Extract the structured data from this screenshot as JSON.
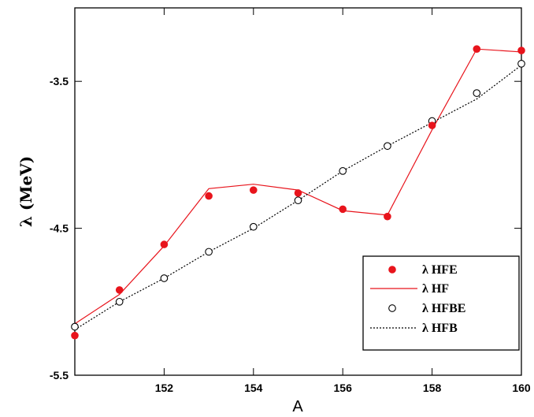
{
  "chart_data": {
    "type": "line",
    "xlabel": "A",
    "ylabel": "λ (MeV)",
    "xlim": [
      150,
      160
    ],
    "ylim": [
      -5.5,
      -3.0
    ],
    "x_ticks": [
      152,
      154,
      156,
      158,
      160
    ],
    "y_ticks": [
      -5.5,
      -4.5,
      -3.5
    ],
    "x_tick_labels": [
      "152",
      "154",
      "156",
      "158",
      "160"
    ],
    "y_tick_labels": [
      "-5.5",
      "-4.5",
      "-3.5"
    ],
    "grid": false,
    "legend_position": "bottom-right",
    "x": [
      150,
      151,
      152,
      153,
      154,
      155,
      156,
      157,
      158,
      159,
      160
    ],
    "series": [
      {
        "name": "λ HFE",
        "style": "filled-circle",
        "color": "#e8141c",
        "values": [
          -5.23,
          -4.92,
          -4.61,
          -4.28,
          -4.24,
          -4.26,
          -4.37,
          -4.42,
          -3.8,
          -3.28,
          -3.29
        ]
      },
      {
        "name": "λ HF",
        "style": "solid-line",
        "color": "#e8141c",
        "values": [
          -5.15,
          -4.95,
          -4.62,
          -4.23,
          -4.2,
          -4.24,
          -4.38,
          -4.41,
          -3.83,
          -3.28,
          -3.3
        ]
      },
      {
        "name": "λ HFBE",
        "style": "open-circle",
        "color": "#000000",
        "values": [
          -5.17,
          -5.0,
          -4.84,
          -4.66,
          -4.49,
          -4.31,
          -4.11,
          -3.94,
          -3.77,
          -3.58,
          -3.38
        ]
      },
      {
        "name": "λ HFB",
        "style": "dotted-line",
        "color": "#000000",
        "values": [
          -5.19,
          -5.0,
          -4.84,
          -4.66,
          -4.5,
          -4.31,
          -4.11,
          -3.94,
          -3.78,
          -3.62,
          -3.39
        ]
      }
    ]
  }
}
